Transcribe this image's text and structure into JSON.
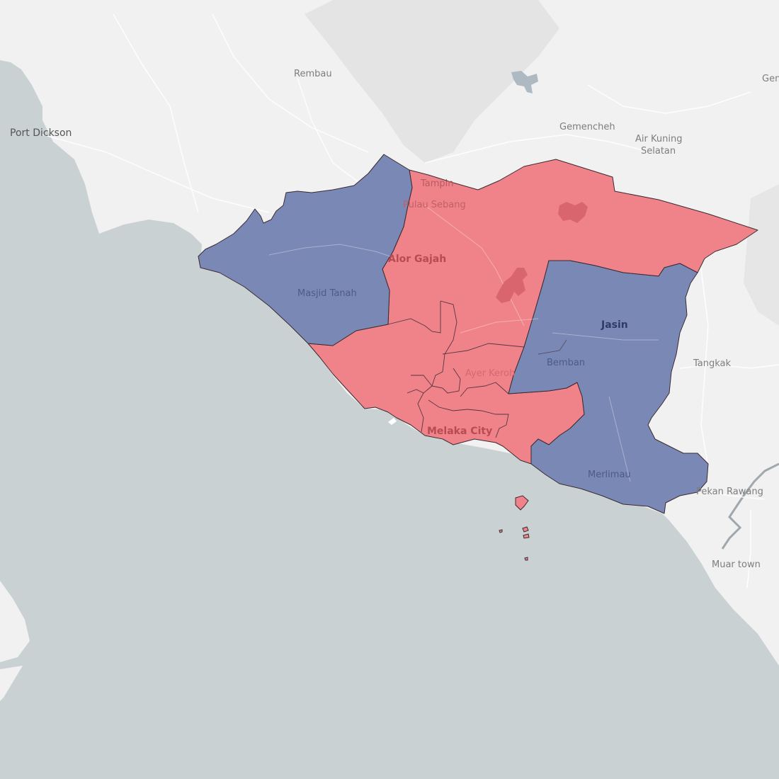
{
  "map": {
    "colors": {
      "sea": "#c9d1d3",
      "land": "#f1f1f1",
      "party_red": "#f0838a",
      "party_blue": "#7a88b5",
      "border": "#3a2a30"
    },
    "place_labels": {
      "port_dickson": "Port Dickson",
      "rembau": "Rembau",
      "gemencheh": "Gemencheh",
      "air_kuning_1": "Air Kuning",
      "air_kuning_2": "Selatan",
      "gen": "Gen",
      "tampin": "Tampin",
      "pulau_sebang": "Pulau Sebang",
      "tangkak": "Tangkak",
      "pekan_rawang": "Pekan Rawang",
      "muar_town": "Muar town"
    },
    "district_labels": {
      "alor_gajah": "Alor Gajah",
      "jasin": "Jasin",
      "melaka_city": "Melaka City"
    },
    "constituency_labels": {
      "masjid_tanah": "Masjid Tanah",
      "ayer_keroh": "Ayer Keroh",
      "bemban": "Bemban",
      "merlimau": "Merlimau"
    }
  }
}
